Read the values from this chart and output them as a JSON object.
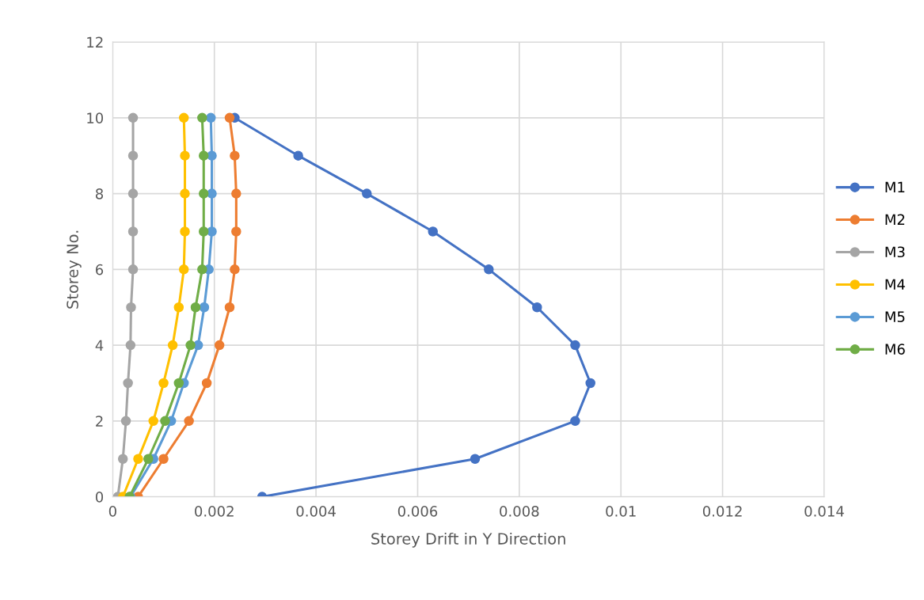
{
  "chart_data": {
    "type": "line",
    "xlabel": "Storey Drift in Y Direction",
    "ylabel": "Storey No.",
    "xlim": [
      0,
      0.014
    ],
    "xticks": [
      0,
      0.002,
      0.004,
      0.006,
      0.008,
      0.01,
      0.012,
      0.014
    ],
    "ylim": [
      0,
      12
    ],
    "yticks": [
      0,
      2,
      4,
      6,
      8,
      10,
      12
    ],
    "grid": true,
    "legend": "right",
    "marker": "circle",
    "line_style": "solid",
    "series": [
      {
        "name": "M1",
        "color": "#4472c4",
        "x": [
          0.00294,
          0.00713,
          0.0091,
          0.0094,
          0.0091,
          0.00835,
          0.0074,
          0.0063,
          0.005,
          0.00365,
          0.0024
        ],
        "values": [
          0,
          1,
          2,
          3,
          4,
          5,
          6,
          7,
          8,
          9,
          10
        ]
      },
      {
        "name": "M2",
        "color": "#ed7d31",
        "x": [
          0.0005,
          0.001,
          0.0015,
          0.00185,
          0.0021,
          0.0023,
          0.0024,
          0.00243,
          0.00243,
          0.0024,
          0.0023
        ],
        "values": [
          0,
          1,
          2,
          3,
          4,
          5,
          6,
          7,
          8,
          9,
          10
        ]
      },
      {
        "name": "M3",
        "color": "#a5a5a5",
        "x": [
          0.0001,
          0.0002,
          0.00026,
          0.0003,
          0.00035,
          0.00036,
          0.0004,
          0.0004,
          0.0004,
          0.0004,
          0.0004
        ],
        "values": [
          0,
          1,
          2,
          3,
          4,
          5,
          6,
          7,
          8,
          9,
          10
        ]
      },
      {
        "name": "M4",
        "color": "#ffc000",
        "x": [
          0.0002,
          0.0005,
          0.0008,
          0.001,
          0.00118,
          0.0013,
          0.0014,
          0.00142,
          0.00142,
          0.00142,
          0.0014
        ],
        "values": [
          0,
          1,
          2,
          3,
          4,
          5,
          6,
          7,
          8,
          9,
          10
        ]
      },
      {
        "name": "M5",
        "color": "#5b9bd5",
        "x": [
          0.00035,
          0.0008,
          0.00115,
          0.0014,
          0.00168,
          0.0018,
          0.00189,
          0.00195,
          0.00195,
          0.00195,
          0.00193
        ],
        "values": [
          0,
          1,
          2,
          3,
          4,
          5,
          6,
          7,
          8,
          9,
          10
        ]
      },
      {
        "name": "M6",
        "color": "#70ad47",
        "x": [
          0.00033,
          0.0007,
          0.00103,
          0.0013,
          0.00153,
          0.00163,
          0.00176,
          0.00179,
          0.00179,
          0.00179,
          0.00176
        ],
        "values": [
          0,
          1,
          2,
          3,
          4,
          5,
          6,
          7,
          8,
          9,
          10
        ]
      }
    ]
  }
}
